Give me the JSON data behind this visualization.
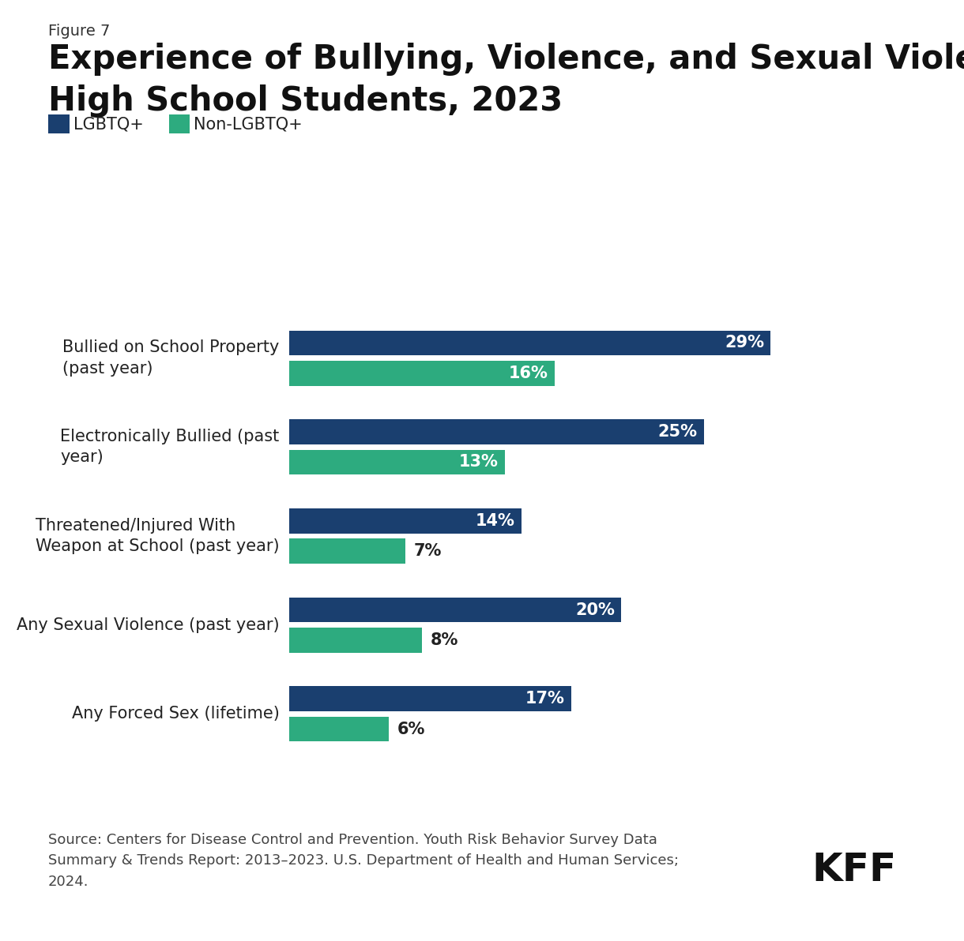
{
  "figure_label": "Figure 7",
  "title_line1": "Experience of Bullying, Violence, and Sexual Violence Among",
  "title_line2": "High School Students, 2023",
  "categories": [
    "Bullied on School Property\n(past year)",
    "Electronically Bullied (past\nyear)",
    "Threatened/Injured With\nWeapon at School (past year)",
    "Any Sexual Violence (past year)",
    "Any Forced Sex (lifetime)"
  ],
  "lgbtq_values": [
    29,
    25,
    14,
    20,
    17
  ],
  "nonlgbtq_values": [
    16,
    13,
    7,
    8,
    6
  ],
  "lgbtq_color": "#1a3f6f",
  "nonlgbtq_color": "#2dab7f",
  "lgbtq_label": "LGBTQ+",
  "nonlgbtq_label": "Non-LGBTQ+",
  "source_text": "Source: Centers for Disease Control and Prevention. Youth Risk Behavior Survey Data\nSummary & Trends Report: 2013–2023. U.S. Department of Health and Human Services;\n2024.",
  "background_color": "#ffffff",
  "bar_height": 0.28,
  "bar_gap": 0.06,
  "xlim": [
    0,
    36
  ],
  "label_fontsize": 15,
  "value_fontsize": 15,
  "title_fontsize": 30,
  "figure_label_fontsize": 14,
  "legend_fontsize": 15,
  "source_fontsize": 13
}
